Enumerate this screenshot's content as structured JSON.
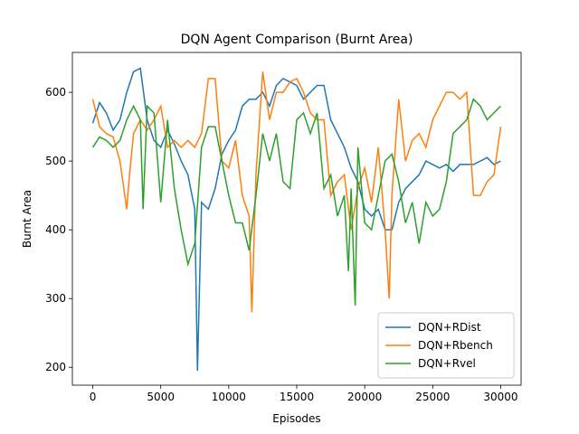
{
  "chart_data": {
    "type": "line",
    "title": "DQN Agent Comparison (Burnt Area)",
    "x_label": "Episodes",
    "y_label": "Burnt Area",
    "xlim": [
      -1500,
      31500
    ],
    "ylim": [
      174,
      658
    ],
    "xticks": [
      0,
      5000,
      10000,
      15000,
      20000,
      25000,
      30000
    ],
    "yticks": [
      200,
      300,
      400,
      500,
      600
    ],
    "legend": "lower right",
    "grid": false,
    "series": [
      {
        "name": "DQN+RDist",
        "color": "#1f77b4",
        "x": [
          0,
          500,
          1000,
          1500,
          2000,
          2500,
          3000,
          3500,
          4000,
          4500,
          5000,
          5500,
          6000,
          6500,
          7000,
          7500,
          7700,
          8000,
          8500,
          9000,
          9500,
          10000,
          10500,
          11000,
          11500,
          12000,
          12500,
          13000,
          13500,
          14000,
          14500,
          15000,
          15500,
          16000,
          16500,
          17000,
          17500,
          18000,
          18500,
          19000,
          19500,
          20000,
          20500,
          21000,
          21500,
          22000,
          22500,
          23000,
          23500,
          24000,
          24500,
          25000,
          25500,
          26000,
          26500,
          27000,
          27500,
          28000,
          28500,
          29000,
          29500,
          30000
        ],
        "values": [
          555,
          585,
          570,
          545,
          560,
          600,
          630,
          635,
          560,
          530,
          520,
          545,
          525,
          500,
          480,
          430,
          195,
          440,
          430,
          460,
          510,
          530,
          545,
          580,
          590,
          590,
          600,
          580,
          610,
          620,
          615,
          610,
          590,
          600,
          610,
          610,
          560,
          540,
          520,
          490,
          470,
          430,
          420,
          430,
          400,
          400,
          440,
          460,
          470,
          480,
          500,
          495,
          490,
          495,
          485,
          495,
          495,
          495,
          500,
          505,
          495,
          500
        ]
      },
      {
        "name": "DQN+Rbench",
        "color": "#ff7f0e",
        "x": [
          0,
          500,
          1000,
          1500,
          2000,
          2500,
          2700,
          3000,
          3500,
          4000,
          4500,
          5000,
          5500,
          6000,
          6500,
          7000,
          7500,
          8000,
          8500,
          9000,
          9500,
          10000,
          10500,
          11000,
          11500,
          11700,
          12000,
          12500,
          13000,
          13500,
          14000,
          14500,
          15000,
          15500,
          16000,
          16500,
          17000,
          17500,
          18000,
          18500,
          19000,
          19500,
          20000,
          20500,
          21000,
          21500,
          21800,
          22000,
          22500,
          23000,
          23500,
          24000,
          24500,
          25000,
          25500,
          26000,
          26500,
          27000,
          27500,
          28000,
          28500,
          29000,
          29500,
          30000
        ],
        "values": [
          590,
          550,
          540,
          535,
          500,
          430,
          480,
          540,
          560,
          545,
          560,
          580,
          520,
          530,
          520,
          530,
          520,
          540,
          620,
          620,
          500,
          490,
          530,
          450,
          420,
          280,
          480,
          630,
          560,
          600,
          600,
          615,
          620,
          600,
          570,
          560,
          560,
          450,
          470,
          480,
          400,
          460,
          490,
          440,
          520,
          400,
          300,
          450,
          590,
          500,
          530,
          540,
          520,
          560,
          580,
          600,
          600,
          590,
          600,
          450,
          450,
          470,
          480,
          550
        ]
      },
      {
        "name": "DQN+Rvel",
        "color": "#2ca02c",
        "x": [
          0,
          500,
          1000,
          1500,
          2000,
          2500,
          3000,
          3500,
          3700,
          4000,
          4500,
          5000,
          5500,
          6000,
          6500,
          7000,
          7500,
          8000,
          8500,
          9000,
          9500,
          10000,
          10500,
          11000,
          11500,
          12000,
          12500,
          13000,
          13500,
          14000,
          14500,
          15000,
          15500,
          16000,
          16500,
          17000,
          17500,
          18000,
          18500,
          18800,
          19000,
          19300,
          19500,
          20000,
          20500,
          21000,
          21500,
          22000,
          22500,
          23000,
          23500,
          24000,
          24500,
          25000,
          25500,
          26000,
          26500,
          27000,
          27500,
          28000,
          28500,
          29000,
          29500,
          30000
        ],
        "values": [
          520,
          535,
          530,
          520,
          530,
          560,
          580,
          560,
          430,
          580,
          570,
          440,
          560,
          460,
          400,
          350,
          380,
          520,
          550,
          550,
          500,
          450,
          410,
          410,
          370,
          450,
          540,
          500,
          540,
          470,
          460,
          560,
          570,
          540,
          570,
          460,
          480,
          420,
          450,
          340,
          460,
          290,
          520,
          410,
          400,
          450,
          500,
          510,
          470,
          410,
          440,
          380,
          440,
          420,
          430,
          470,
          540,
          550,
          560,
          590,
          580,
          560,
          570,
          580
        ]
      }
    ]
  }
}
